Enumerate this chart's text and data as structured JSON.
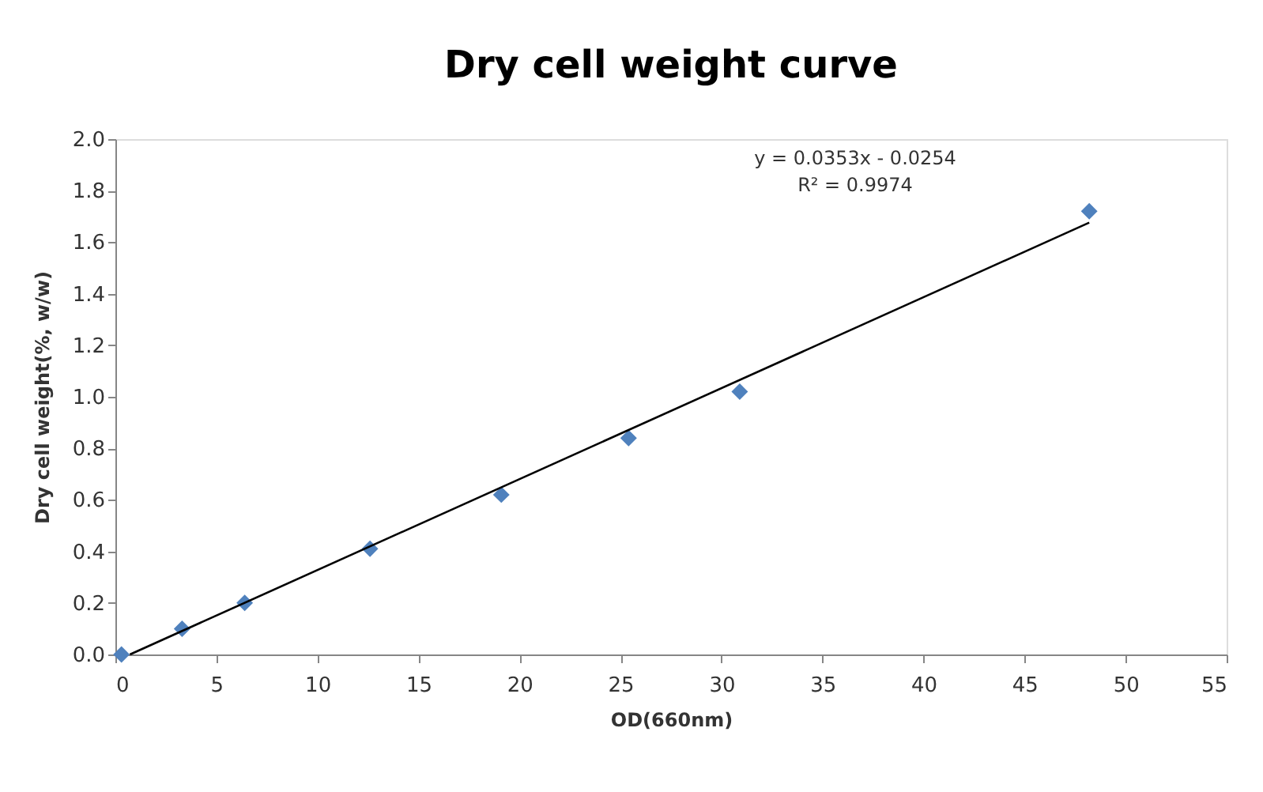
{
  "chart_data": {
    "type": "scatter",
    "title": "Dry cell weight curve",
    "xlabel": "OD(660nm)",
    "ylabel": "Dry cell weight(%, w/w)",
    "annotations": [
      "y = 0.0353x - 0.0254",
      "R² = 0.9974"
    ],
    "series": [
      {
        "color": "#4f81bd",
        "marker": "diamond",
        "x": [
          0.3,
          3.3,
          6.4,
          12.6,
          19.1,
          25.4,
          30.9,
          48.2
        ],
        "values": [
          0.0,
          0.1,
          0.2,
          0.41,
          0.62,
          0.84,
          1.02,
          1.72
        ]
      },
      {
        "type": "line",
        "color": "#000000",
        "marker": "none",
        "x": [
          0.72,
          48.2
        ],
        "values": [
          0.0,
          1.676
        ]
      }
    ],
    "xlim": [
      0,
      55
    ],
    "xticks": [
      0,
      5,
      10,
      15,
      20,
      25,
      30,
      35,
      40,
      45,
      50,
      55
    ],
    "ylim": [
      0,
      2.0
    ],
    "yticks": [
      {
        "value": 0,
        "label": "0.0"
      },
      {
        "value": 0.2,
        "label": "0.2"
      },
      {
        "value": 0.4,
        "label": "0.4"
      },
      {
        "value": 0.6,
        "label": "0.6"
      },
      {
        "value": 0.8,
        "label": "0.8"
      },
      {
        "value": 1.0,
        "label": "1.0"
      },
      {
        "value": 1.2,
        "label": "1.2"
      },
      {
        "value": 1.4,
        "label": "1.4"
      },
      {
        "value": 1.6,
        "label": "1.6"
      },
      {
        "value": 1.8,
        "label": "1.8"
      },
      {
        "value": 2.0,
        "label": "2.0"
      }
    ],
    "grid": false
  }
}
